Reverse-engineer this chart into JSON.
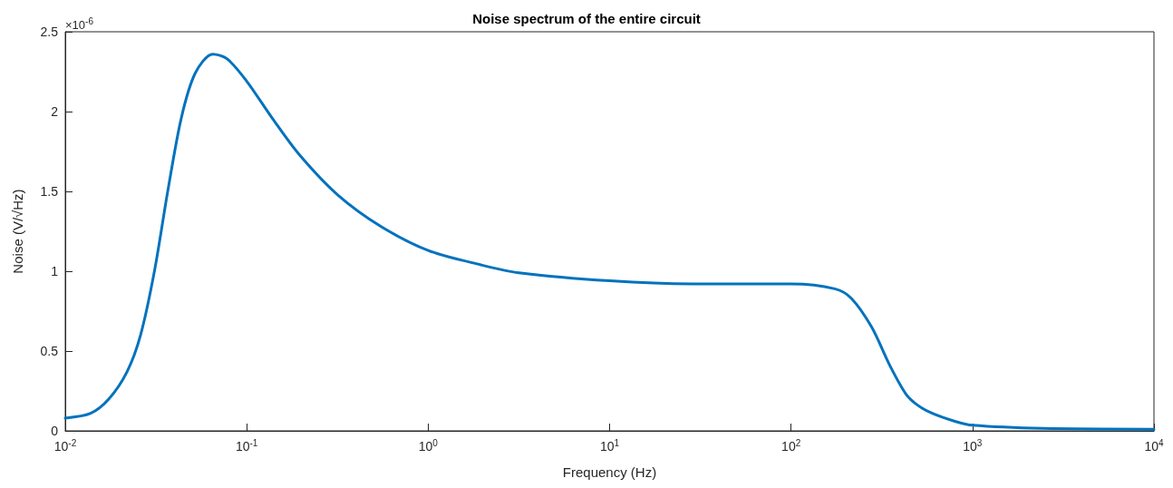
{
  "chart_data": {
    "type": "line",
    "title": "Noise spectrum of the entire circuit",
    "xlabel": "Frequency (Hz)",
    "ylabel": "Noise (V/√Hz)",
    "annotations": [
      "×10$^{-6}$"
    ],
    "log": "x",
    "grid": false,
    "marker": "none",
    "line_style": "solid",
    "xlim": [
      0.01,
      10000
    ],
    "xticks": [
      {
        "value": 0.01,
        "label": "10$^{-2}$"
      },
      {
        "value": 0.1,
        "label": "10$^{-1}$"
      },
      {
        "value": 1,
        "label": "10$^{0}$"
      },
      {
        "value": 10,
        "label": "10$^{1}$"
      },
      {
        "value": 100,
        "label": "10$^{2}$"
      },
      {
        "value": 1000,
        "label": "10$^{3}$"
      },
      {
        "value": 10000,
        "label": "10$^{4}$"
      }
    ],
    "ylim": [
      0,
      2.5
    ],
    "yticks": [
      0,
      0.5,
      1,
      1.5,
      2,
      2.5
    ],
    "x": [
      0.01,
      0.0138,
      0.0174,
      0.0219,
      0.026,
      0.031,
      0.0367,
      0.0436,
      0.052,
      0.065,
      0.078,
      0.1,
      0.138,
      0.195,
      0.316,
      0.55,
      1,
      1.95,
      3.16,
      10,
      31.6,
      100,
      174,
      215,
      278,
      350,
      430,
      500,
      600,
      800,
      1000,
      2450,
      10000
    ],
    "series": [
      {
        "color": "#0072bd",
        "values": [
          0.08,
          0.11,
          0.2,
          0.37,
          0.6,
          1.0,
          1.5,
          1.96,
          2.24,
          2.36,
          2.33,
          2.19,
          1.96,
          1.73,
          1.48,
          1.28,
          1.13,
          1.04,
          0.99,
          0.94,
          0.92,
          0.92,
          0.89,
          0.83,
          0.65,
          0.41,
          0.23,
          0.16,
          0.11,
          0.06,
          0.035,
          0.015,
          0.01
        ]
      }
    ]
  }
}
